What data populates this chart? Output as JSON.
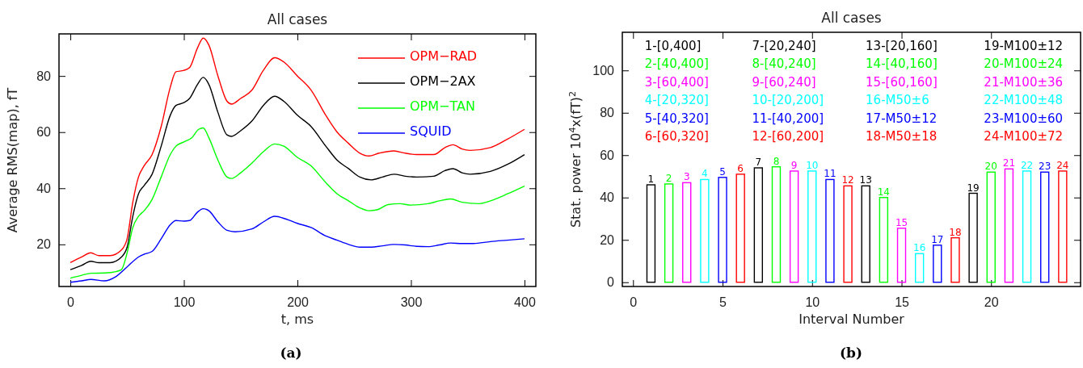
{
  "chart_data": [
    {
      "type": "line",
      "title": "All cases",
      "xlabel": "t, ms",
      "ylabel": "Average RMS(map), fT",
      "xlim": [
        -10,
        410
      ],
      "ylim": [
        5,
        95
      ],
      "xticks": [
        0,
        100,
        200,
        300,
        400
      ],
      "yticks": [
        20,
        40,
        60,
        80
      ],
      "grid": false,
      "legend": "top right",
      "marker": "none",
      "line_style": "solid",
      "annotations": [
        "(a)"
      ],
      "series": [
        {
          "name": "OPM−RAD",
          "color": "#ff0000",
          "x": [
            0,
            10,
            18,
            25,
            35,
            45,
            50,
            55,
            60,
            65,
            72,
            80,
            88,
            93,
            100,
            105,
            112,
            117,
            122,
            130,
            138,
            142,
            150,
            160,
            170,
            180,
            188,
            200,
            212,
            225,
            235,
            245,
            255,
            263,
            272,
            285,
            295,
            305,
            320,
            330,
            337,
            345,
            352,
            370,
            385,
            400
          ],
          "values": [
            13.5,
            15.5,
            17,
            16,
            16,
            18,
            22,
            35,
            44,
            48,
            52,
            62,
            76,
            81.5,
            82,
            83,
            90,
            93.5,
            91,
            80,
            71,
            70,
            72,
            75,
            82,
            86.5,
            85,
            80,
            75,
            66,
            60,
            56,
            52.5,
            51.5,
            52.5,
            53.3,
            52.5,
            52,
            52,
            54.5,
            55.5,
            54,
            53.5,
            54.5,
            57.5,
            61
          ]
        },
        {
          "name": "OPM−2AX",
          "color": "#000000",
          "x": [
            0,
            10,
            18,
            25,
            35,
            45,
            50,
            55,
            60,
            65,
            72,
            80,
            88,
            93,
            100,
            105,
            112,
            117,
            122,
            130,
            138,
            142,
            150,
            160,
            170,
            180,
            188,
            200,
            212,
            225,
            235,
            245,
            255,
            265,
            275,
            285,
            295,
            305,
            320,
            330,
            337,
            345,
            352,
            370,
            385,
            400
          ],
          "values": [
            11,
            12.5,
            14,
            13.5,
            13.5,
            15.5,
            19,
            30,
            38,
            41,
            45,
            55,
            66,
            69.5,
            70.5,
            72,
            77,
            79.5,
            77,
            67,
            59,
            58.5,
            60.5,
            64,
            69.5,
            72.8,
            71,
            66,
            62,
            55,
            50,
            47,
            44,
            43,
            44,
            45,
            44.3,
            44,
            44.3,
            46.3,
            47,
            45.5,
            45,
            46,
            48.5,
            52
          ]
        },
        {
          "name": "OPM−TAN",
          "color": "#00ff00",
          "x": [
            0,
            10,
            18,
            30,
            40,
            45,
            50,
            55,
            60,
            65,
            72,
            80,
            88,
            93,
            100,
            107,
            113,
            117,
            122,
            130,
            138,
            142,
            150,
            160,
            170,
            180,
            188,
            200,
            212,
            225,
            235,
            245,
            255,
            263,
            270,
            280,
            290,
            300,
            315,
            325,
            335,
            345,
            360,
            370,
            385,
            400
          ],
          "values": [
            8,
            9,
            9.7,
            9.8,
            10.3,
            11,
            17,
            26,
            30,
            32,
            36,
            44,
            52,
            55,
            56.5,
            58,
            61,
            61.5,
            58,
            50,
            44,
            43.5,
            45.5,
            49,
            53,
            55.8,
            55,
            51,
            48,
            42,
            38,
            35.5,
            33,
            32,
            32.3,
            34.2,
            34.5,
            34,
            34.5,
            35.5,
            36.2,
            35,
            34.5,
            35.5,
            38,
            40.8
          ]
        },
        {
          "name": "SQUID",
          "color": "#0000ff",
          "x": [
            0,
            10,
            18,
            30,
            40,
            50,
            60,
            65,
            72,
            80,
            88,
            93,
            100,
            105,
            112,
            117,
            122,
            130,
            138,
            145,
            160,
            170,
            180,
            190,
            200,
            212,
            225,
            235,
            245,
            255,
            265,
            275,
            285,
            295,
            305,
            315,
            325,
            335,
            345,
            355,
            370,
            385,
            400
          ],
          "values": [
            6.5,
            7,
            7.5,
            7,
            8.5,
            12,
            15.5,
            16.5,
            17.5,
            22,
            27,
            28.5,
            28.3,
            28.5,
            31.5,
            32.7,
            32,
            28,
            25,
            24.5,
            25.5,
            28,
            30,
            29,
            27.5,
            26,
            23,
            21.5,
            20,
            19,
            19,
            19.5,
            20,
            19.8,
            19.3,
            19.2,
            19.8,
            20.5,
            20.3,
            20.3,
            21,
            21.5,
            22
          ]
        }
      ]
    },
    {
      "type": "bar",
      "title": "All cases",
      "xlabel": "Interval Number",
      "ylabel": "Stat. power 10$^{4}$x(fT)$^{2}$",
      "xlim": [
        -0.6,
        25
      ],
      "ylim": [
        -2,
        118
      ],
      "xticks": [
        0,
        5,
        10,
        15,
        20
      ],
      "yticks": [
        0,
        20,
        40,
        60,
        80,
        100
      ],
      "grid": false,
      "x": [
        1,
        2,
        3,
        4,
        5,
        6,
        7,
        8,
        9,
        10,
        11,
        12,
        13,
        14,
        15,
        16,
        17,
        18,
        19,
        20,
        21,
        22,
        23,
        24
      ],
      "values": [
        46,
        46.4,
        47,
        48.5,
        49.5,
        51,
        54,
        54.5,
        52.5,
        52.5,
        48.5,
        45.5,
        45.5,
        40,
        25.5,
        13.5,
        17.5,
        21,
        42,
        52,
        53.5,
        52.5,
        52,
        52.5
      ],
      "colors": [
        "#000000",
        "#00ff00",
        "#ff00ff",
        "#00ffff",
        "#0000ff",
        "#ff0000",
        "#000000",
        "#00ff00",
        "#ff00ff",
        "#00ffff",
        "#0000ff",
        "#ff0000",
        "#000000",
        "#00ff00",
        "#ff00ff",
        "#00ffff",
        "#0000ff",
        "#ff0000",
        "#000000",
        "#00ff00",
        "#ff00ff",
        "#00ffff",
        "#0000ff",
        "#ff0000"
      ],
      "annotations": [
        "(b)",
        "1-[0,400]",
        "2-[40,400]",
        "3-[60,400]",
        "4-[20,320]",
        "5-[40,320]",
        "6-[60,320]",
        "7-[20,240]",
        "8-[40,240]",
        "9-[60,240]",
        "10-[20,200]",
        "11-[40,200]",
        "12-[60,200]",
        "13-[20,160]",
        "14-[40,160]",
        "15-[60,160]",
        "16-M50±6",
        "17-M50±12",
        "18-M50±18",
        "19-M100±12",
        "20-M100±24",
        "21-M100±36",
        "22-M100±48",
        "23-M100±60",
        "24-M100±72",
        {
          "text": "1",
          "x": 1,
          "y": 46
        },
        {
          "text": "2",
          "x": 2,
          "y": 46.4
        },
        {
          "text": "3",
          "x": 3,
          "y": 47
        },
        {
          "text": "4",
          "x": 4,
          "y": 48.5
        },
        {
          "text": "5",
          "x": 5,
          "y": 49.5
        },
        {
          "text": "6",
          "x": 6,
          "y": 51
        },
        {
          "text": "7",
          "x": 7,
          "y": 54
        },
        {
          "text": "8",
          "x": 8,
          "y": 54.5
        },
        {
          "text": "9",
          "x": 9,
          "y": 52.5
        },
        {
          "text": "10",
          "x": 10,
          "y": 52.5
        },
        {
          "text": "11",
          "x": 11,
          "y": 48.5
        },
        {
          "text": "12",
          "x": 12,
          "y": 45.5
        },
        {
          "text": "13",
          "x": 13,
          "y": 45.5
        },
        {
          "text": "14",
          "x": 14,
          "y": 40
        },
        {
          "text": "15",
          "x": 15,
          "y": 25.5
        },
        {
          "text": "16",
          "x": 16,
          "y": 13.5
        },
        {
          "text": "17",
          "x": 17,
          "y": 17.5
        },
        {
          "text": "18",
          "x": 18,
          "y": 21
        },
        {
          "text": "19",
          "x": 19,
          "y": 42
        },
        {
          "text": "20",
          "x": 20,
          "y": 52
        },
        {
          "text": "21",
          "x": 21,
          "y": 53.5
        },
        {
          "text": "22",
          "x": 22,
          "y": 52.5
        },
        {
          "text": "23",
          "x": 23,
          "y": 52
        },
        {
          "text": "24",
          "x": 24,
          "y": 52.5
        }
      ]
    }
  ]
}
